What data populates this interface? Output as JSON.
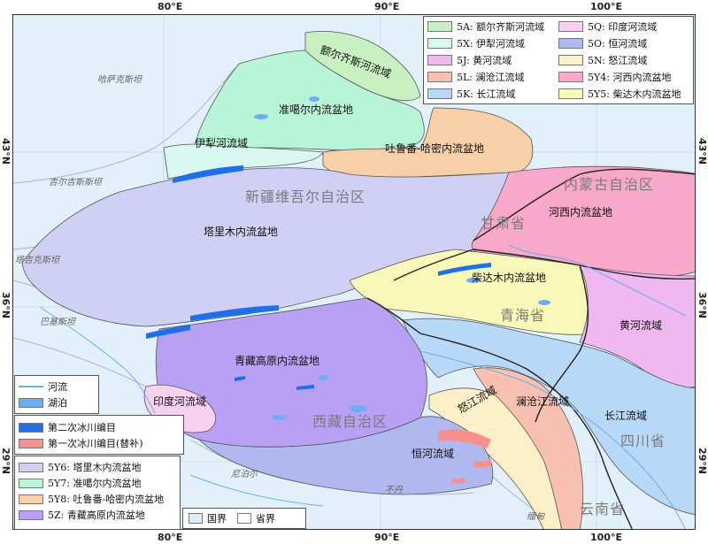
{
  "axes": {
    "top": [
      "80°E",
      "90°E",
      "100°E"
    ],
    "bottom": [
      "80°E",
      "90°E",
      "100°E"
    ],
    "left": [
      "43°N",
      "36°N",
      "29°N"
    ],
    "right": [
      "43°N",
      "36°N",
      "29°N"
    ]
  },
  "basin_legend": [
    {
      "label": "5A: 额尔齐斯河流域",
      "color": "#c8f0c0"
    },
    {
      "label": "5Q: 印度河流域",
      "color": "#f8d0f0"
    },
    {
      "label": "5X: 伊犁河流域",
      "color": "#d8f8f0"
    },
    {
      "label": "5O: 恒河流域",
      "color": "#b0b8f0"
    },
    {
      "label": "5J: 黄河流域",
      "color": "#f0b8f0"
    },
    {
      "label": "5N: 怒江流域",
      "color": "#fdf0c8"
    },
    {
      "label": "5L: 澜沧江流域",
      "color": "#f8c0b0"
    },
    {
      "label": "5Y4: 河西内流盆地",
      "color": "#f8a8c8"
    },
    {
      "label": "5K: 长江流域",
      "color": "#b8d8f8"
    },
    {
      "label": "5Y5: 柴达木内流盆地",
      "color": "#f8f8b8"
    }
  ],
  "water_legend": [
    {
      "label": "河流",
      "color": "#6aaee8",
      "kind": "line"
    },
    {
      "label": "湖泊",
      "color": "#6aaef8",
      "kind": "fill"
    }
  ],
  "glacier_legend": [
    {
      "label": "第二次冰川编目",
      "color": "#1e6fe8"
    },
    {
      "label": "第一次冰川编目(替补)",
      "color": "#f89090"
    }
  ],
  "lower_legend": [
    {
      "label": "5Y6: 塔里木内流盆地",
      "color": "#d0d0f4"
    },
    {
      "label": "5Y7: 准噶尔内流盆地",
      "color": "#b8f4d8"
    },
    {
      "label": "5Y8: 吐鲁番-哈密内流盆地",
      "color": "#f8d0a8"
    },
    {
      "label": "5Z: 青藏高原内流盆地",
      "color": "#b8a0f4"
    }
  ],
  "border_legend": [
    {
      "label": "国界",
      "color": "#dceefa"
    },
    {
      "label": "省界",
      "color": "#ffffff"
    }
  ],
  "map_labels": {
    "erqis": "额尔齐斯河流域",
    "junggar": "准噶尔内流盆地",
    "ili": "伊犁河流域",
    "turpan": "吐鲁番-哈密内流盆地",
    "xinjiang": "新疆维吾尔自治区",
    "tarim": "塔里木内流盆地",
    "innermongolia": "内蒙古自治区",
    "hexi": "河西内流盆地",
    "gansu": "甘肃省",
    "qaidam": "柴达木内流盆地",
    "qinghai": "青海省",
    "yellow": "黄河流域",
    "tibetplateau": "青藏高原内流盆地",
    "indus": "印度河流域",
    "nujiang": "怒江流域",
    "lancang": "澜沧江流域",
    "yangtze": "长江流域",
    "sichuan": "四川省",
    "tibet": "西藏自治区",
    "ganges": "恒河流域",
    "yunnan": "云南省",
    "kazakhstan": "哈萨克斯坦",
    "kyrgyzstan": "吉尔吉斯斯坦",
    "tajikistan": "塔吉克斯坦",
    "pakistan": "巴基斯坦",
    "nepal": "尼泊尔",
    "bhutan": "不丹",
    "myanmar": "缅甸"
  }
}
